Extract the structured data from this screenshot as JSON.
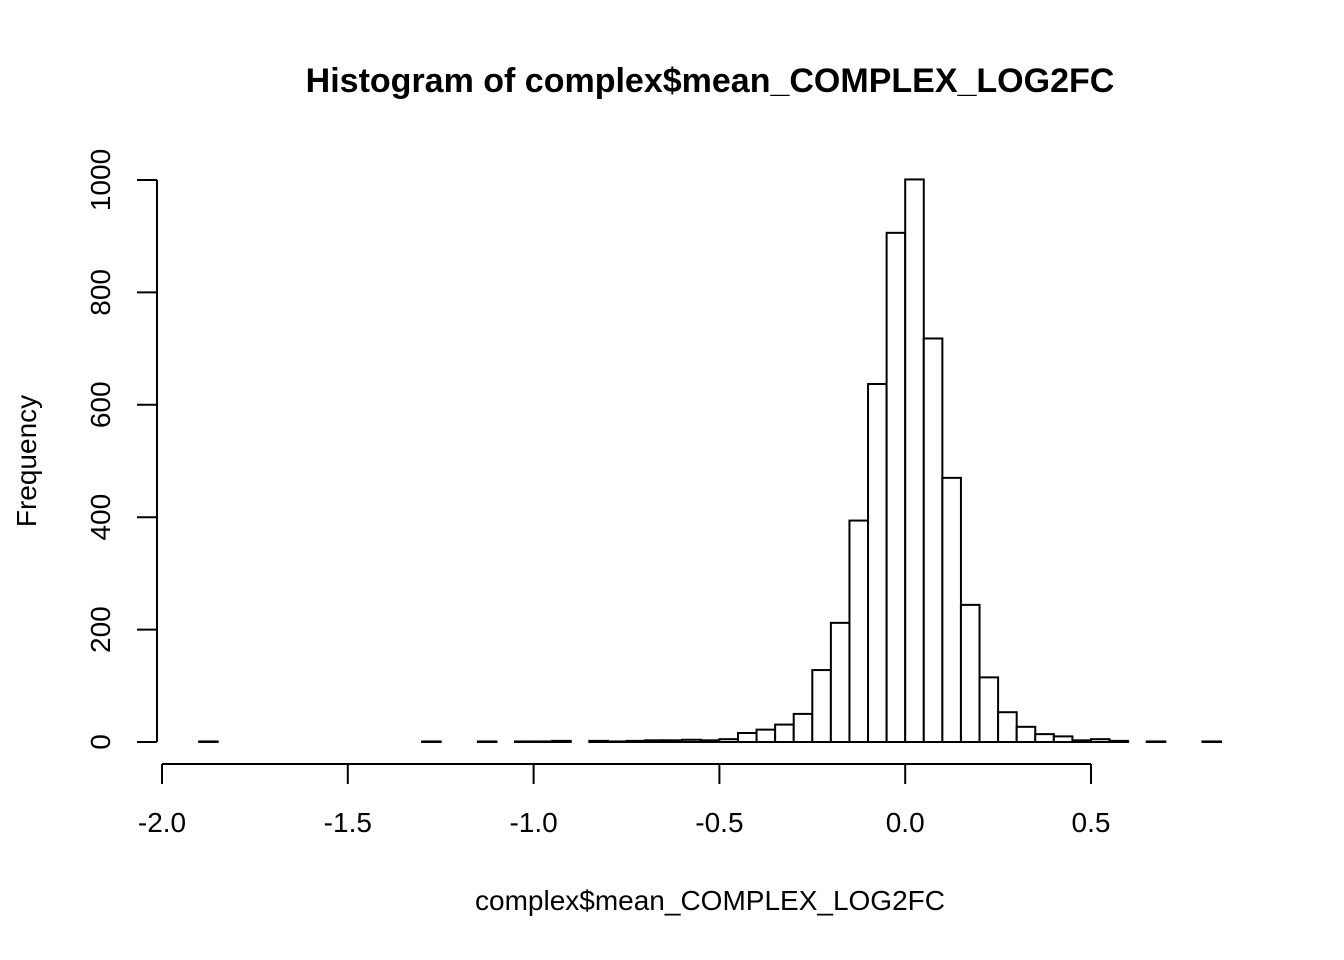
{
  "chart_data": {
    "type": "bar",
    "title": "Histogram of complex$mean_COMPLEX_LOG2FC",
    "xlabel": "complex$mean_COMPLEX_LOG2FC",
    "ylabel": "Frequency",
    "xlim": [
      -2.0,
      0.85
    ],
    "ylim": [
      0,
      1000
    ],
    "bin_width": 0.05,
    "x_ticks": [
      -2.0,
      -1.5,
      -1.0,
      -0.5,
      0.0,
      0.5
    ],
    "x_tick_labels": [
      "-2.0",
      "-1.5",
      "-1.0",
      "-0.5",
      "0.0",
      "0.5"
    ],
    "y_ticks": [
      0,
      200,
      400,
      600,
      800,
      1000
    ],
    "y_tick_labels": [
      "0",
      "200",
      "400",
      "600",
      "800",
      "1000"
    ],
    "grid": false,
    "bins": [
      {
        "start": -1.9,
        "end": -1.85,
        "count": 1
      },
      {
        "start": -1.85,
        "end": -1.8,
        "count": 0
      },
      {
        "start": -1.8,
        "end": -1.75,
        "count": 0
      },
      {
        "start": -1.75,
        "end": -1.7,
        "count": 0
      },
      {
        "start": -1.7,
        "end": -1.65,
        "count": 0
      },
      {
        "start": -1.65,
        "end": -1.6,
        "count": 0
      },
      {
        "start": -1.6,
        "end": -1.55,
        "count": 0
      },
      {
        "start": -1.55,
        "end": -1.5,
        "count": 0
      },
      {
        "start": -1.5,
        "end": -1.45,
        "count": 0
      },
      {
        "start": -1.45,
        "end": -1.4,
        "count": 0
      },
      {
        "start": -1.4,
        "end": -1.35,
        "count": 0
      },
      {
        "start": -1.35,
        "end": -1.3,
        "count": 0
      },
      {
        "start": -1.3,
        "end": -1.25,
        "count": 1
      },
      {
        "start": -1.25,
        "end": -1.2,
        "count": 0
      },
      {
        "start": -1.2,
        "end": -1.15,
        "count": 0
      },
      {
        "start": -1.15,
        "end": -1.1,
        "count": 1
      },
      {
        "start": -1.1,
        "end": -1.05,
        "count": 0
      },
      {
        "start": -1.05,
        "end": -1.0,
        "count": 1
      },
      {
        "start": -1.0,
        "end": -0.95,
        "count": 1
      },
      {
        "start": -0.95,
        "end": -0.9,
        "count": 2
      },
      {
        "start": -0.9,
        "end": -0.85,
        "count": 0
      },
      {
        "start": -0.85,
        "end": -0.8,
        "count": 2
      },
      {
        "start": -0.8,
        "end": -0.75,
        "count": 1
      },
      {
        "start": -0.75,
        "end": -0.7,
        "count": 2
      },
      {
        "start": -0.7,
        "end": -0.65,
        "count": 3
      },
      {
        "start": -0.65,
        "end": -0.6,
        "count": 3
      },
      {
        "start": -0.6,
        "end": -0.55,
        "count": 4
      },
      {
        "start": -0.55,
        "end": -0.5,
        "count": 3
      },
      {
        "start": -0.5,
        "end": -0.45,
        "count": 5
      },
      {
        "start": -0.45,
        "end": -0.4,
        "count": 16
      },
      {
        "start": -0.4,
        "end": -0.35,
        "count": 22
      },
      {
        "start": -0.35,
        "end": -0.3,
        "count": 31
      },
      {
        "start": -0.3,
        "end": -0.25,
        "count": 50
      },
      {
        "start": -0.25,
        "end": -0.2,
        "count": 128
      },
      {
        "start": -0.2,
        "end": -0.15,
        "count": 212
      },
      {
        "start": -0.15,
        "end": -0.1,
        "count": 394
      },
      {
        "start": -0.1,
        "end": -0.05,
        "count": 637
      },
      {
        "start": -0.05,
        "end": 0.0,
        "count": 906
      },
      {
        "start": 0.0,
        "end": 0.05,
        "count": 1001
      },
      {
        "start": 0.05,
        "end": 0.1,
        "count": 718
      },
      {
        "start": 0.1,
        "end": 0.15,
        "count": 470
      },
      {
        "start": 0.15,
        "end": 0.2,
        "count": 244
      },
      {
        "start": 0.2,
        "end": 0.25,
        "count": 115
      },
      {
        "start": 0.25,
        "end": 0.3,
        "count": 53
      },
      {
        "start": 0.3,
        "end": 0.35,
        "count": 27
      },
      {
        "start": 0.35,
        "end": 0.4,
        "count": 14
      },
      {
        "start": 0.4,
        "end": 0.45,
        "count": 10
      },
      {
        "start": 0.45,
        "end": 0.5,
        "count": 3
      },
      {
        "start": 0.5,
        "end": 0.55,
        "count": 5
      },
      {
        "start": 0.55,
        "end": 0.6,
        "count": 2
      },
      {
        "start": 0.6,
        "end": 0.65,
        "count": 0
      },
      {
        "start": 0.65,
        "end": 0.7,
        "count": 1
      },
      {
        "start": 0.7,
        "end": 0.75,
        "count": 0
      },
      {
        "start": 0.75,
        "end": 0.8,
        "count": 0
      },
      {
        "start": 0.8,
        "end": 0.85,
        "count": 1
      }
    ]
  }
}
